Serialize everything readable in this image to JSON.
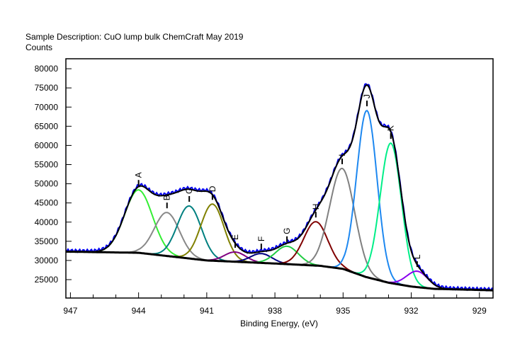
{
  "chart_data": {
    "type": "line",
    "title": "Sample Description:  CuO lump bulk ChemCraft May 2019",
    "ylabel": "Counts",
    "xlabel": "Binding Energy, (eV)",
    "xlim": [
      947.2,
      928.4
    ],
    "x_reversed": true,
    "ylim": [
      20200,
      82600
    ],
    "x_ticks": [
      "947",
      "944",
      "941",
      "938",
      "935",
      "932",
      "929"
    ],
    "y_ticks": [
      "80000",
      "75000",
      "70000",
      "65000",
      "60000",
      "55000",
      "50000",
      "45000",
      "40000",
      "35000",
      "30000",
      "25000"
    ],
    "grid": false,
    "background": {
      "x": [
        947.2,
        944,
        941,
        938,
        936,
        935,
        934,
        933,
        932,
        931,
        929,
        928.4
      ],
      "y": [
        32300,
        32000,
        30000,
        29200,
        28600,
        27800,
        25700,
        24200,
        23200,
        22600,
        22300,
        22200
      ]
    },
    "peaks": [
      {
        "label": "A",
        "center": 944.0,
        "max_counts": 48400,
        "fwhm": 1.45,
        "color": "#33ee33"
      },
      {
        "label": "B",
        "center": 942.75,
        "max_counts": 42500,
        "fwhm": 1.3,
        "color": "#888888"
      },
      {
        "label": "C",
        "center": 941.77,
        "max_counts": 44200,
        "fwhm": 1.25,
        "color": "#008080"
      },
      {
        "label": "D",
        "center": 940.75,
        "max_counts": 44700,
        "fwhm": 1.2,
        "color": "#808000"
      },
      {
        "label": "E",
        "center": 939.75,
        "max_counts": 32200,
        "fwhm": 1.1,
        "color": "#800080"
      },
      {
        "label": "F",
        "center": 938.6,
        "max_counts": 31800,
        "fwhm": 1.1,
        "color": "#000080"
      },
      {
        "label": "G",
        "center": 937.47,
        "max_counts": 33700,
        "fwhm": 1.2,
        "color": "#22cc44"
      },
      {
        "label": "H",
        "center": 936.2,
        "max_counts": 40100,
        "fwhm": 1.25,
        "color": "#800000"
      },
      {
        "label": "I",
        "center": 935.04,
        "max_counts": 54000,
        "fwhm": 1.3,
        "color": "#808080"
      },
      {
        "label": "J",
        "center": 933.95,
        "max_counts": 69100,
        "fwhm": 1.05,
        "color": "#1e88f0"
      },
      {
        "label": "K",
        "center": 932.9,
        "max_counts": 60600,
        "fwhm": 1.1,
        "color": "#00ee88"
      },
      {
        "label": "L",
        "center": 931.74,
        "max_counts": 27200,
        "fwhm": 1.1,
        "color": "#8800ee"
      }
    ],
    "colors": {
      "measured": "#0000ee",
      "envelope": "#000000",
      "background": "#000000"
    }
  }
}
